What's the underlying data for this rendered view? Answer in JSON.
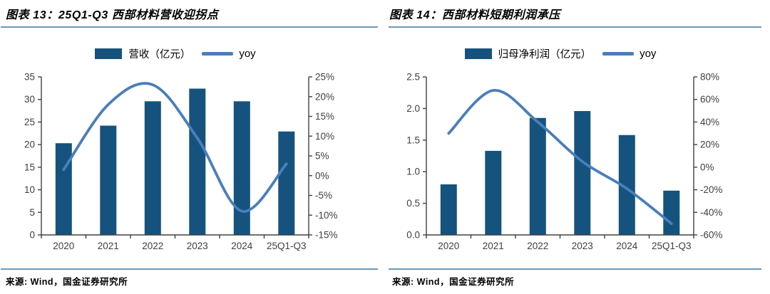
{
  "panels": [
    {
      "title": "图表 13：25Q1-Q3 西部材料营收迎拐点",
      "source": "来源: Wind，国金证券研究所"
    },
    {
      "title": "图表 14：西部材料短期利润承压",
      "source": "来源: Wind，国金证券研究所"
    }
  ],
  "chart_data": [
    {
      "type": "bar",
      "title": "25Q1-Q3 西部材料营收迎拐点",
      "categories": [
        "2020",
        "2021",
        "2022",
        "2023",
        "2024",
        "25Q1-Q3"
      ],
      "series": [
        {
          "name": "营收（亿元）",
          "type": "bar",
          "axis": "left",
          "values": [
            20.3,
            24.2,
            29.6,
            32.4,
            29.6,
            22.9
          ]
        },
        {
          "name": "yoy",
          "type": "line",
          "axis": "right",
          "values": [
            1.5,
            18,
            23,
            9.5,
            -9,
            3
          ]
        }
      ],
      "left_axis": {
        "min": 0,
        "max": 35,
        "ticks": [
          "0",
          "5",
          "10",
          "15",
          "20",
          "25",
          "30",
          "35"
        ]
      },
      "right_axis": {
        "min": -15,
        "max": 25,
        "ticks": [
          "-15%",
          "-10%",
          "-5%",
          "0%",
          "5%",
          "10%",
          "15%",
          "20%",
          "25%"
        ]
      },
      "legend_position": "top",
      "grid": false,
      "colors": {
        "bar": "#15537E",
        "line": "#4A7EBC",
        "axis": "#404040",
        "tick_text": "#3f3f3f"
      }
    },
    {
      "type": "bar",
      "title": "西部材料短期利润承压",
      "categories": [
        "2020",
        "2021",
        "2022",
        "2023",
        "2024",
        "25Q1-Q3"
      ],
      "series": [
        {
          "name": "归母净利润（亿元）",
          "type": "bar",
          "axis": "left",
          "values": [
            0.8,
            1.33,
            1.85,
            1.96,
            1.58,
            0.7
          ]
        },
        {
          "name": "yoy",
          "type": "line",
          "axis": "right",
          "values": [
            30,
            68,
            40,
            5,
            -19,
            -50
          ]
        }
      ],
      "left_axis": {
        "min": 0,
        "max": 2.5,
        "ticks": [
          "0.0",
          "0.5",
          "1.0",
          "1.5",
          "2.0",
          "2.5"
        ]
      },
      "right_axis": {
        "min": -60,
        "max": 80,
        "ticks": [
          "-60%",
          "-40%",
          "-20%",
          "0%",
          "20%",
          "40%",
          "60%",
          "80%"
        ]
      },
      "legend_position": "top",
      "grid": false,
      "colors": {
        "bar": "#15537E",
        "line": "#4A7EBC",
        "axis": "#404040",
        "tick_text": "#3f3f3f"
      }
    }
  ]
}
